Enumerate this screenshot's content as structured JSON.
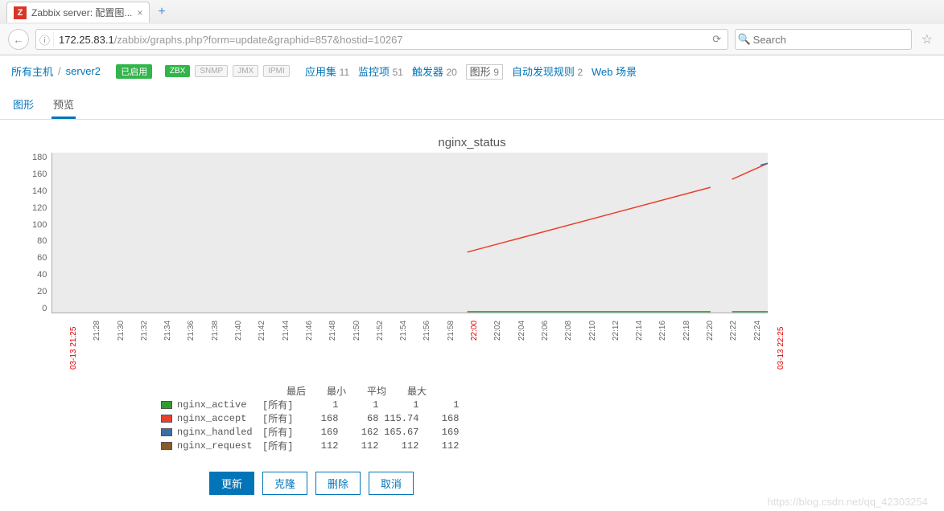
{
  "browser": {
    "tab": {
      "favicon_letter": "Z",
      "title": "Zabbix server: 配置图..."
    },
    "url": {
      "host": "172.25.83.1",
      "path": "/zabbix/graphs.php?form=update&graphid=857&hostid=10267"
    },
    "search_placeholder": "Search"
  },
  "nav": {
    "breadcrumb_hosts": "所有主机",
    "sep": "/",
    "host": "server2",
    "enabled_label": "已启用",
    "badges": {
      "zbx": "ZBX",
      "snmp": "SNMP",
      "jmx": "JMX",
      "ipmi": "IPMI"
    },
    "items": [
      {
        "label": "应用集",
        "count": "11",
        "link": true
      },
      {
        "label": "监控项",
        "count": "51",
        "link": true
      },
      {
        "label": "触发器",
        "count": "20",
        "link": true
      },
      {
        "label": "图形",
        "count": "9",
        "link": false
      },
      {
        "label": "自动发现规则",
        "count": "2",
        "link": true
      },
      {
        "label": "Web 场景",
        "count": "",
        "link": true
      }
    ]
  },
  "sub_tabs": {
    "t1": "图形",
    "t2": "预览"
  },
  "chart": {
    "title": "nginx_status",
    "y_ticks": [
      "180",
      "160",
      "140",
      "120",
      "100",
      "80",
      "60",
      "40",
      "20",
      "0"
    ],
    "y_max": 180,
    "x_start_label": "03-13 21:25",
    "x_end_label": "03-13 22:25",
    "x_ticks": [
      "21:28",
      "21:30",
      "21:32",
      "21:34",
      "21:36",
      "21:38",
      "21:40",
      "21:42",
      "21:44",
      "21:46",
      "21:48",
      "21:50",
      "21:52",
      "21:54",
      "21:56",
      "21:58",
      "22:00",
      "22:02",
      "22:04",
      "22:06",
      "22:08",
      "22:10",
      "22:12",
      "22:14",
      "22:16",
      "22:18",
      "22:20",
      "22:22",
      "22:24"
    ],
    "x_red_tick": "22:00",
    "plot_bg": "#ebebeb",
    "series": {
      "active": {
        "name": "nginx_active",
        "color": "#2e9c31",
        "segments": [
          {
            "x1": 0.58,
            "y1": 1,
            "x2": 0.92,
            "y2": 1
          },
          {
            "x1": 0.95,
            "y1": 1,
            "x2": 1.0,
            "y2": 1
          }
        ]
      },
      "accept": {
        "name": "nginx_accept",
        "color": "#e8402a",
        "segments": [
          {
            "x1": 0.58,
            "y1": 68,
            "x2": 0.92,
            "y2": 141
          },
          {
            "x1": 0.95,
            "y1": 150,
            "x2": 1.0,
            "y2": 168
          }
        ]
      },
      "handled": {
        "name": "nginx_handled",
        "color": "#3a6ea5",
        "segments": [
          {
            "x1": 0.99,
            "y1": 166,
            "x2": 1.0,
            "y2": 168
          }
        ]
      },
      "request": {
        "name": "nginx_request",
        "color": "#8a5a2b",
        "segments": []
      }
    },
    "legend_headers": [
      "最后",
      "最小",
      "平均",
      "最大"
    ],
    "legend_label_prefix": "[所有]",
    "legend_rows": [
      {
        "key": "active",
        "vals": [
          "1",
          "1",
          "1",
          "1"
        ]
      },
      {
        "key": "accept",
        "vals": [
          "168",
          "68",
          "115.74",
          "168"
        ]
      },
      {
        "key": "handled",
        "vals": [
          "169",
          "162",
          "165.67",
          "169"
        ]
      },
      {
        "key": "request",
        "vals": [
          "112",
          "112",
          "112",
          "112"
        ]
      }
    ]
  },
  "buttons": {
    "update": "更新",
    "clone": "克隆",
    "delete": "删除",
    "cancel": "取消"
  },
  "watermark": "https://blog.csdn.net/qq_42303254"
}
